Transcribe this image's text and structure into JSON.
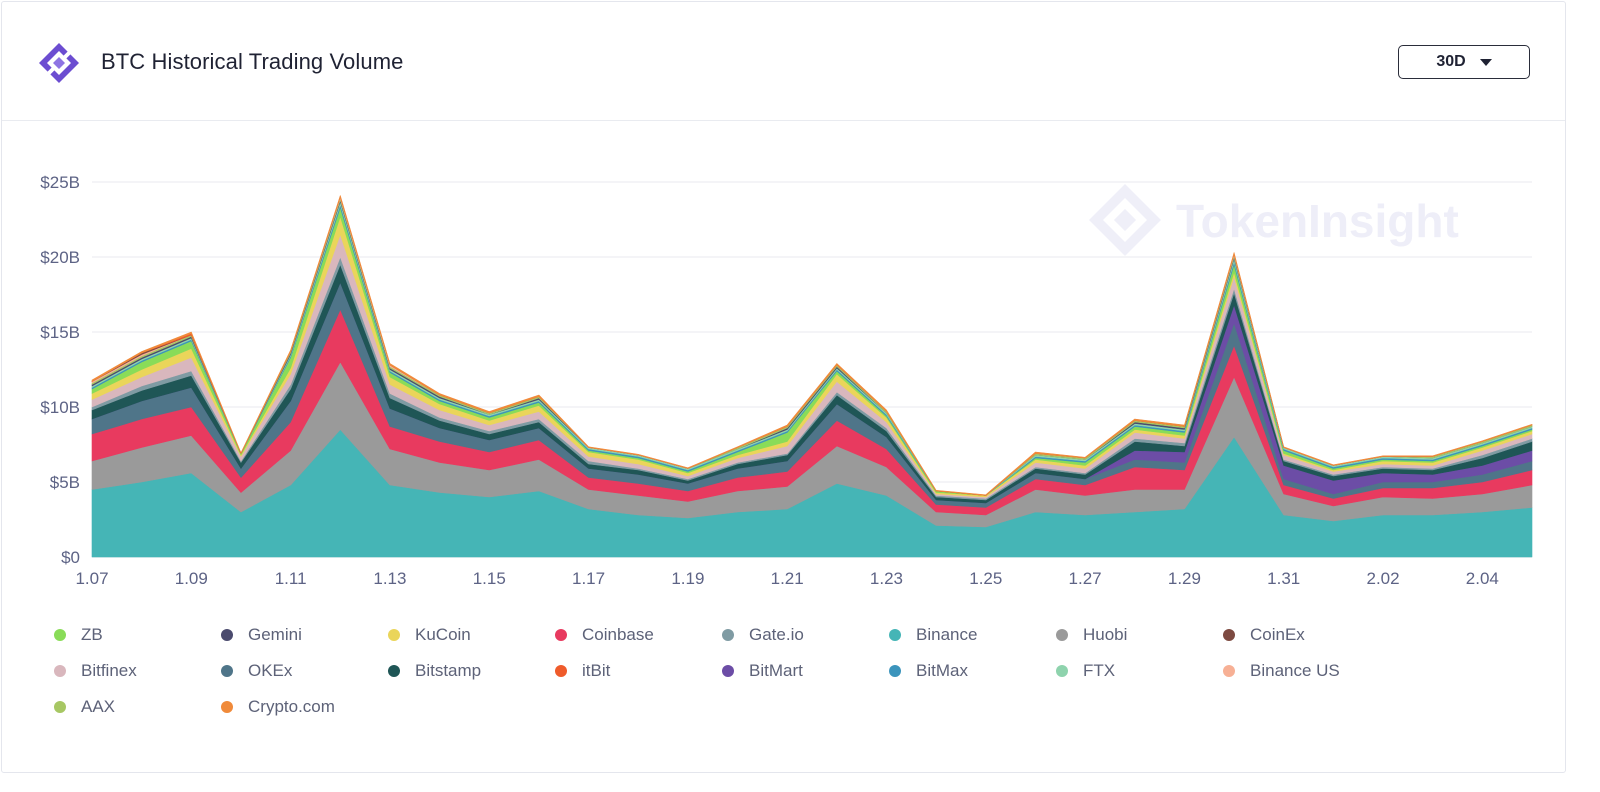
{
  "header": {
    "title": "BTC Historical Trading Volume",
    "range_label": "30D"
  },
  "watermark": "TokenInsight",
  "colors": {
    "brand": "#6c4dd1",
    "axis_text": "#5d6385",
    "grid": "#e8e9ef"
  },
  "chart_data": {
    "type": "area",
    "stacked": true,
    "title": "BTC Historical Trading Volume",
    "x": [
      "1.07",
      "1.08",
      "1.09",
      "1.10",
      "1.11",
      "1.12",
      "1.13",
      "1.14",
      "1.15",
      "1.16",
      "1.17",
      "1.18",
      "1.19",
      "1.20",
      "1.21",
      "1.22",
      "1.23",
      "1.24",
      "1.25",
      "1.26",
      "1.27",
      "1.28",
      "1.29",
      "1.30",
      "1.31",
      "2.01",
      "2.02",
      "2.03",
      "2.04",
      "2.05"
    ],
    "x_ticks": [
      "1.07",
      "1.09",
      "1.11",
      "1.13",
      "1.15",
      "1.17",
      "1.19",
      "1.21",
      "1.23",
      "1.25",
      "1.27",
      "1.29",
      "1.31",
      "2.02",
      "2.04"
    ],
    "y_ticks": [
      "$0",
      "$5B",
      "$10B",
      "$15B",
      "$20B",
      "$25B"
    ],
    "ylim": [
      0,
      25
    ],
    "y_unit": "B USD",
    "grid": true,
    "legend_position": "bottom",
    "series": [
      {
        "name": "Binance",
        "color": "#45b5b6",
        "values": [
          4.5,
          5.0,
          5.6,
          3.0,
          4.8,
          8.5,
          4.8,
          4.3,
          4.0,
          4.4,
          3.2,
          2.8,
          2.6,
          3.0,
          3.2,
          4.9,
          4.1,
          2.1,
          2.0,
          3.0,
          2.8,
          3.0,
          3.2,
          8.0,
          2.8,
          2.4,
          2.8,
          2.8,
          3.0,
          3.3
        ]
      },
      {
        "name": "Huobi",
        "color": "#9a9a9a",
        "values": [
          1.9,
          2.3,
          2.5,
          1.3,
          2.3,
          4.5,
          2.4,
          2.0,
          1.8,
          2.1,
          1.3,
          1.3,
          1.1,
          1.4,
          1.5,
          2.5,
          1.9,
          0.9,
          0.8,
          1.5,
          1.3,
          1.5,
          1.3,
          4.0,
          1.4,
          1.0,
          1.2,
          1.1,
          1.2,
          1.5
        ]
      },
      {
        "name": "Coinbase",
        "color": "#e83a5f",
        "values": [
          1.8,
          1.9,
          1.9,
          1.0,
          1.9,
          3.5,
          1.5,
          1.4,
          1.2,
          1.3,
          0.8,
          0.8,
          0.7,
          0.9,
          1.0,
          1.7,
          1.2,
          0.5,
          0.5,
          0.7,
          0.7,
          1.5,
          1.3,
          2.1,
          0.6,
          0.5,
          0.6,
          0.7,
          0.8,
          1.0
        ]
      },
      {
        "name": "OKEx",
        "color": "#4f7589",
        "values": [
          1.0,
          1.2,
          1.3,
          0.6,
          1.4,
          1.8,
          1.2,
          0.9,
          0.8,
          0.8,
          0.6,
          0.6,
          0.5,
          0.6,
          0.7,
          1.1,
          0.8,
          0.3,
          0.3,
          0.4,
          0.4,
          0.5,
          0.5,
          1.5,
          0.4,
          0.3,
          0.4,
          0.4,
          0.5,
          0.6
        ]
      },
      {
        "name": "BitMart",
        "color": "#6c4da6",
        "values": [
          0,
          0,
          0,
          0,
          0,
          0,
          0,
          0,
          0,
          0,
          0,
          0,
          0,
          0,
          0,
          0,
          0,
          0,
          0,
          0,
          0,
          0.6,
          0.7,
          1.2,
          0.9,
          0.9,
          0.6,
          0.5,
          0.6,
          0.7
        ]
      },
      {
        "name": "Bitstamp",
        "color": "#1f5656",
        "values": [
          0.6,
          0.7,
          0.8,
          0.4,
          0.8,
          1.2,
          0.7,
          0.5,
          0.4,
          0.4,
          0.3,
          0.3,
          0.2,
          0.3,
          0.4,
          0.6,
          0.4,
          0.2,
          0.2,
          0.3,
          0.3,
          0.6,
          0.4,
          0.8,
          0.3,
          0.3,
          0.3,
          0.3,
          0.5,
          0.6
        ]
      },
      {
        "name": "Gate.io",
        "color": "#7f9ba3",
        "values": [
          0.2,
          0.3,
          0.3,
          0.1,
          0.3,
          0.5,
          0.3,
          0.2,
          0.2,
          0.2,
          0.2,
          0.1,
          0.1,
          0.1,
          0.1,
          0.2,
          0.2,
          0.1,
          0.1,
          0.1,
          0.1,
          0.2,
          0.2,
          0.3,
          0.1,
          0.1,
          0.1,
          0.1,
          0.2,
          0.2
        ]
      },
      {
        "name": "Bitfinex",
        "color": "#d9b7bd",
        "values": [
          0.5,
          0.6,
          0.9,
          0.3,
          0.7,
          1.5,
          0.6,
          0.5,
          0.4,
          0.5,
          0.3,
          0.3,
          0.2,
          0.3,
          0.5,
          0.7,
          0.4,
          0.1,
          0.1,
          0.3,
          0.3,
          0.4,
          0.3,
          0.8,
          0.3,
          0.2,
          0.2,
          0.2,
          0.3,
          0.3
        ]
      },
      {
        "name": "KuCoin",
        "color": "#ead55a",
        "values": [
          0.4,
          0.5,
          0.6,
          0.1,
          0.4,
          1.2,
          0.5,
          0.4,
          0.3,
          0.4,
          0.3,
          0.3,
          0.2,
          0.2,
          0.3,
          0.5,
          0.3,
          0.1,
          0.1,
          0.2,
          0.2,
          0.2,
          0.2,
          0.3,
          0.1,
          0.1,
          0.2,
          0.2,
          0.2,
          0.2
        ]
      },
      {
        "name": "ZB",
        "color": "#89dc58",
        "values": [
          0.3,
          0.5,
          0.5,
          0.1,
          0.7,
          0.6,
          0.3,
          0.2,
          0.2,
          0.2,
          0.1,
          0.1,
          0.1,
          0.2,
          0.6,
          0.2,
          0.1,
          0.1,
          0.0,
          0.1,
          0.2,
          0.2,
          0.2,
          0.5,
          0.2,
          0.1,
          0.1,
          0.1,
          0.1,
          0.1
        ]
      },
      {
        "name": "BitMax",
        "color": "#3b94bc",
        "values": [
          0.1,
          0.1,
          0.1,
          0,
          0.1,
          0.2,
          0.1,
          0.1,
          0.1,
          0.1,
          0.1,
          0.1,
          0.1,
          0.1,
          0.1,
          0.1,
          0.1,
          0,
          0,
          0.1,
          0.1,
          0.1,
          0.1,
          0.2,
          0.1,
          0.1,
          0.1,
          0.1,
          0.1,
          0.1
        ]
      },
      {
        "name": "FTX",
        "color": "#8ed3ad",
        "values": [
          0.1,
          0.1,
          0.1,
          0,
          0.1,
          0.2,
          0.1,
          0.1,
          0.1,
          0.1,
          0.1,
          0.1,
          0.1,
          0.1,
          0.1,
          0.1,
          0.1,
          0,
          0,
          0.1,
          0.1,
          0.1,
          0.1,
          0.2,
          0.1,
          0.1,
          0.1,
          0.1,
          0.1,
          0.1
        ]
      },
      {
        "name": "Gemini",
        "color": "#4b4b6e",
        "values": [
          0.1,
          0.1,
          0.1,
          0,
          0.1,
          0.1,
          0.1,
          0.1,
          0,
          0.1,
          0,
          0,
          0,
          0,
          0.1,
          0.1,
          0,
          0,
          0,
          0,
          0,
          0.1,
          0.1,
          0.1,
          0,
          0,
          0,
          0,
          0,
          0
        ]
      },
      {
        "name": "AAX",
        "color": "#a7c763",
        "values": [
          0.1,
          0.1,
          0.1,
          0,
          0.1,
          0.1,
          0.1,
          0.1,
          0.1,
          0.1,
          0,
          0,
          0,
          0.1,
          0.1,
          0.1,
          0.1,
          0,
          0,
          0.1,
          0.1,
          0.1,
          0.1,
          0.1,
          0,
          0,
          0,
          0.1,
          0.1,
          0.1
        ]
      },
      {
        "name": "Binance US",
        "color": "#f7b095",
        "values": [
          0.1,
          0.1,
          0,
          0,
          0,
          0.1,
          0.1,
          0,
          0,
          0,
          0,
          0,
          0,
          0,
          0,
          0,
          0,
          0,
          0,
          0,
          0,
          0,
          0,
          0.1,
          0,
          0,
          0,
          0,
          0,
          0
        ]
      },
      {
        "name": "CoinEx",
        "color": "#7d4a41",
        "values": [
          0,
          0.1,
          0,
          0,
          0,
          0,
          0,
          0,
          0,
          0,
          0,
          0,
          0,
          0,
          0,
          0,
          0,
          0,
          0,
          0,
          0,
          0,
          0,
          0,
          0,
          0,
          0,
          0,
          0,
          0
        ]
      },
      {
        "name": "itBit",
        "color": "#ef5b2b",
        "values": [
          0,
          0,
          0.1,
          0,
          0,
          0,
          0,
          0,
          0,
          0,
          0,
          0,
          0,
          0,
          0,
          0,
          0,
          0,
          0,
          0,
          0,
          0,
          0,
          0,
          0,
          0,
          0,
          0,
          0,
          0
        ]
      },
      {
        "name": "Crypto.com",
        "color": "#f08a3a",
        "values": [
          0.1,
          0.1,
          0.1,
          0.05,
          0.1,
          0.1,
          0.1,
          0.1,
          0.1,
          0.1,
          0.05,
          0.05,
          0.05,
          0.05,
          0.1,
          0.1,
          0.1,
          0.05,
          0.05,
          0.1,
          0.05,
          0.1,
          0.1,
          0.1,
          0.05,
          0.05,
          0.05,
          0.05,
          0.05,
          0.05
        ]
      }
    ]
  },
  "legend": [
    {
      "label": "ZB",
      "color": "#89dc58"
    },
    {
      "label": "Gemini",
      "color": "#4b4b6e"
    },
    {
      "label": "KuCoin",
      "color": "#ead55a"
    },
    {
      "label": "Coinbase",
      "color": "#e83a5f"
    },
    {
      "label": "Gate.io",
      "color": "#7f9ba3"
    },
    {
      "label": "Binance",
      "color": "#45b5b6"
    },
    {
      "label": "Huobi",
      "color": "#9a9a9a"
    },
    {
      "label": "CoinEx",
      "color": "#7d4a41"
    },
    {
      "label": "Bitfinex",
      "color": "#d9b7bd"
    },
    {
      "label": "OKEx",
      "color": "#4f7589"
    },
    {
      "label": "Bitstamp",
      "color": "#1f5656"
    },
    {
      "label": "itBit",
      "color": "#ef5b2b"
    },
    {
      "label": "BitMart",
      "color": "#6c4da6"
    },
    {
      "label": "BitMax",
      "color": "#3b94bc"
    },
    {
      "label": "FTX",
      "color": "#8ed3ad"
    },
    {
      "label": "Binance US",
      "color": "#f7b095"
    },
    {
      "label": "AAX",
      "color": "#a7c763"
    },
    {
      "label": "Crypto.com",
      "color": "#f08a3a"
    }
  ]
}
